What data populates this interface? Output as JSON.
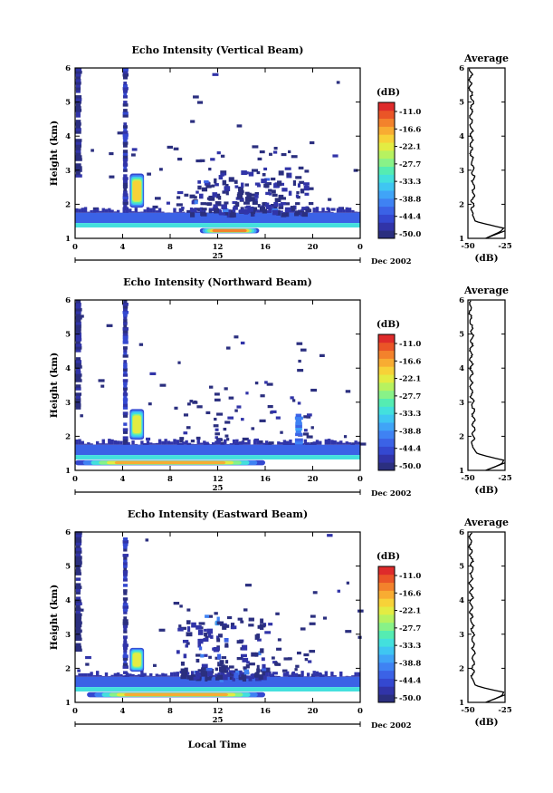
{
  "colors": {
    "scale": [
      "#2b2f7f",
      "#3134a8",
      "#3448d0",
      "#3b62e6",
      "#3f82f3",
      "#40a4f7",
      "#3fc6f2",
      "#43e0dd",
      "#55ecb2",
      "#88f288",
      "#b7f260",
      "#e3ec43",
      "#f7d238",
      "#f8ac32",
      "#f3822c",
      "#ea5527",
      "#de2b2b"
    ],
    "profile": "#000000",
    "axis": "#000000"
  },
  "panels": [
    {
      "title": "Echo Intensity (Vertical Beam)",
      "ylabel": "Height (km)",
      "xticks": [
        "0",
        "4",
        "8",
        "12",
        "16",
        "20",
        "0"
      ],
      "yticks": [
        "1",
        "2",
        "3",
        "4",
        "5",
        "6"
      ],
      "day_label": "25",
      "month_label": "Dec 2002",
      "colorbar_unit": "(dB)",
      "colorbar_ticks": [
        "-11.0",
        "-16.6",
        "-22.1",
        "-27.7",
        "-33.3",
        "-38.8",
        "-44.4",
        "-50.0"
      ],
      "avg_title": "Average",
      "avg_xticks": [
        "-50",
        "-25"
      ],
      "avg_yticks": [
        "1",
        "2",
        "3",
        "4",
        "5",
        "6"
      ],
      "avg_xlabel": "(dB)"
    },
    {
      "title": "Echo Intensity (Northward Beam)",
      "ylabel": "Height (km)",
      "xticks": [
        "0",
        "4",
        "8",
        "12",
        "16",
        "20",
        "0"
      ],
      "yticks": [
        "1",
        "2",
        "3",
        "4",
        "5",
        "6"
      ],
      "day_label": "25",
      "month_label": "Dec 2002",
      "colorbar_unit": "(dB)",
      "colorbar_ticks": [
        "-11.0",
        "-16.6",
        "-22.1",
        "-27.7",
        "-33.3",
        "-38.8",
        "-44.4",
        "-50.0"
      ],
      "avg_title": "Average",
      "avg_xticks": [
        "-50",
        "-25"
      ],
      "avg_yticks": [
        "1",
        "2",
        "3",
        "4",
        "5",
        "6"
      ],
      "avg_xlabel": "(dB)"
    },
    {
      "title": "Echo Intensity (Eastward Beam)",
      "ylabel": "Height (km)",
      "xticks": [
        "0",
        "4",
        "8",
        "12",
        "16",
        "20",
        "0"
      ],
      "yticks": [
        "1",
        "2",
        "3",
        "4",
        "5",
        "6"
      ],
      "day_label": "25",
      "month_label": "Dec 2002",
      "colorbar_unit": "(dB)",
      "colorbar_ticks": [
        "-11.0",
        "-16.6",
        "-22.1",
        "-27.7",
        "-33.3",
        "-38.8",
        "-44.4",
        "-50.0"
      ],
      "avg_title": "Average",
      "avg_xticks": [
        "-50",
        "-25"
      ],
      "avg_yticks": [
        "1",
        "2",
        "3",
        "4",
        "5",
        "6"
      ],
      "avg_xlabel": "(dB)"
    }
  ],
  "xlabel": "Local Time",
  "chart_data": [
    {
      "type": "heatmap",
      "title": "Echo Intensity (Vertical Beam)",
      "xlabel": "",
      "ylabel": "Height (km)",
      "xlim": [
        0,
        24
      ],
      "ylim": [
        1,
        6
      ],
      "zlim": [
        -50.0,
        -11.0
      ],
      "features": [
        {
          "x": [
            0,
            0.6
          ],
          "y": [
            2.8,
            6.0
          ],
          "db": -46
        },
        {
          "x": [
            4.0,
            4.5
          ],
          "y": [
            1.6,
            6.0
          ],
          "db": -44
        },
        {
          "x": [
            4.6,
            5.8
          ],
          "y": [
            1.9,
            2.9
          ],
          "db": -22
        },
        {
          "x": [
            0,
            24
          ],
          "y": [
            1.45,
            1.75
          ],
          "db": -43
        },
        {
          "x": [
            0,
            24
          ],
          "y": [
            1.32,
            1.45
          ],
          "db": -33
        },
        {
          "x": [
            10.5,
            15.5
          ],
          "y": [
            1.15,
            1.3
          ],
          "db": -16
        },
        {
          "x": [
            9.5,
            19.5
          ],
          "y": [
            1.75,
            3.0
          ],
          "db": -46
        }
      ],
      "average_profile": {
        "title": "Average",
        "xlabel": "(dB)",
        "xlim": [
          -50,
          -25
        ],
        "ylim": [
          1,
          6
        ],
        "height_km": [
          1.0,
          1.1,
          1.2,
          1.3,
          1.4,
          1.5,
          1.7,
          2.0,
          2.4,
          2.8,
          3.2,
          3.6,
          4.0,
          4.5,
          5.0,
          5.5,
          6.0
        ],
        "db": [
          -38,
          -33,
          -28,
          -26,
          -36,
          -45,
          -47,
          -47,
          -46,
          -46.5,
          -47,
          -48,
          -47.5,
          -48,
          -47,
          -48.5,
          -48
        ]
      }
    },
    {
      "type": "heatmap",
      "title": "Echo Intensity (Northward Beam)",
      "xlabel": "",
      "ylabel": "Height (km)",
      "xlim": [
        0,
        24
      ],
      "ylim": [
        1,
        6
      ],
      "zlim": [
        -50.0,
        -11.0
      ],
      "features": [
        {
          "x": [
            0,
            0.6
          ],
          "y": [
            2.8,
            6.0
          ],
          "db": -46
        },
        {
          "x": [
            4.0,
            4.5
          ],
          "y": [
            1.6,
            6.0
          ],
          "db": -44
        },
        {
          "x": [
            4.6,
            5.8
          ],
          "y": [
            1.9,
            2.8
          ],
          "db": -24
        },
        {
          "x": [
            0,
            24
          ],
          "y": [
            1.45,
            1.75
          ],
          "db": -43
        },
        {
          "x": [
            0,
            24
          ],
          "y": [
            1.32,
            1.45
          ],
          "db": -33
        },
        {
          "x": [
            0,
            16
          ],
          "y": [
            1.15,
            1.3
          ],
          "db": -18
        },
        {
          "x": [
            18.5,
            19.2
          ],
          "y": [
            1.7,
            2.6
          ],
          "db": -38
        }
      ],
      "average_profile": {
        "title": "Average",
        "xlabel": "(dB)",
        "xlim": [
          -50,
          -25
        ],
        "ylim": [
          1,
          6
        ],
        "height_km": [
          1.0,
          1.1,
          1.2,
          1.3,
          1.4,
          1.5,
          1.7,
          2.0,
          2.4,
          2.8,
          3.2,
          3.6,
          4.0,
          4.5,
          5.0,
          5.5,
          6.0
        ],
        "db": [
          -38,
          -32,
          -27,
          -26,
          -36,
          -44,
          -47,
          -46.5,
          -46,
          -46.5,
          -47.5,
          -48,
          -47.5,
          -48,
          -47,
          -48.5,
          -48
        ]
      }
    },
    {
      "type": "heatmap",
      "title": "Echo Intensity (Eastward Beam)",
      "xlabel": "Local Time",
      "ylabel": "Height (km)",
      "xlim": [
        0,
        24
      ],
      "ylim": [
        1,
        6
      ],
      "zlim": [
        -50.0,
        -11.0
      ],
      "features": [
        {
          "x": [
            0,
            0.6
          ],
          "y": [
            2.5,
            6.0
          ],
          "db": -46
        },
        {
          "x": [
            4.0,
            4.5
          ],
          "y": [
            1.6,
            5.8
          ],
          "db": -44
        },
        {
          "x": [
            4.6,
            5.8
          ],
          "y": [
            1.9,
            2.6
          ],
          "db": -24
        },
        {
          "x": [
            0,
            24
          ],
          "y": [
            1.45,
            1.75
          ],
          "db": -43
        },
        {
          "x": [
            0,
            24
          ],
          "y": [
            1.32,
            1.45
          ],
          "db": -33
        },
        {
          "x": [
            1,
            16
          ],
          "y": [
            1.15,
            1.3
          ],
          "db": -18
        },
        {
          "x": [
            8.5,
            16
          ],
          "y": [
            1.75,
            3.6
          ],
          "db": -46
        }
      ],
      "average_profile": {
        "title": "Average",
        "xlabel": "(dB)",
        "xlim": [
          -50,
          -25
        ],
        "ylim": [
          1,
          6
        ],
        "height_km": [
          1.0,
          1.1,
          1.2,
          1.3,
          1.4,
          1.5,
          1.7,
          2.0,
          2.4,
          2.8,
          3.2,
          3.6,
          4.0,
          4.5,
          5.0,
          5.5,
          6.0
        ],
        "db": [
          -38,
          -32,
          -27,
          -26,
          -37,
          -45,
          -47,
          -46.5,
          -46,
          -46.5,
          -47,
          -48,
          -47.5,
          -48,
          -47,
          -48.5,
          -48
        ]
      }
    }
  ]
}
